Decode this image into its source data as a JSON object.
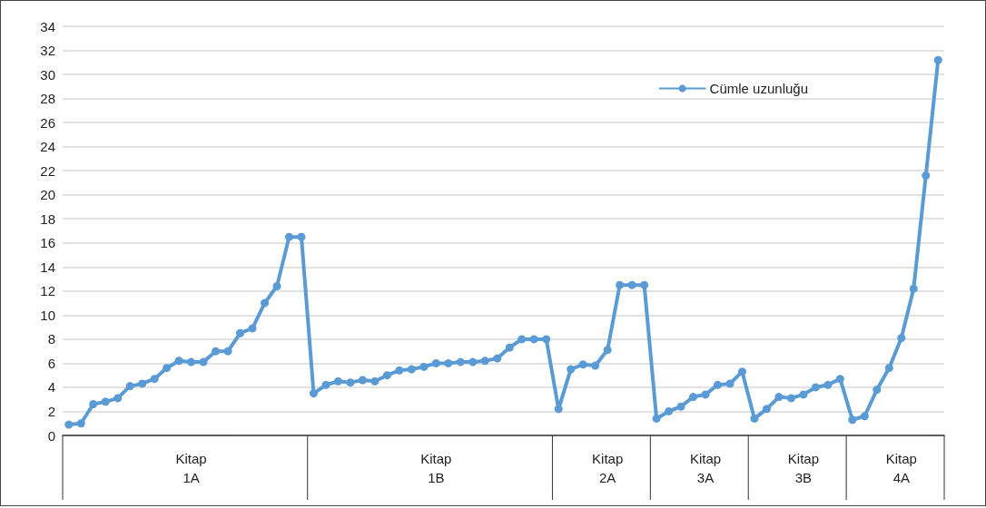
{
  "chart_data": {
    "type": "line",
    "categories": [
      null,
      null,
      null,
      null,
      null,
      null,
      null,
      null,
      null,
      null,
      "Kitap 1A",
      null,
      null,
      null,
      null,
      null,
      null,
      null,
      null,
      null,
      null,
      null,
      null,
      null,
      null,
      null,
      null,
      null,
      null,
      null,
      "Kitap 1B",
      null,
      null,
      null,
      null,
      null,
      null,
      null,
      null,
      null,
      null,
      null,
      null,
      null,
      "Kitap 2A",
      null,
      null,
      null,
      null,
      null,
      null,
      null,
      "Kitap 3A",
      null,
      null,
      null,
      null,
      null,
      null,
      null,
      "Kitap 3B",
      null,
      null,
      null,
      null,
      null,
      null,
      null,
      "Kitap 4A",
      null,
      null,
      null
    ],
    "series": [
      {
        "name": "Cümle uzunluğu",
        "color": "#5b9bd5",
        "values": [
          0.9,
          1.0,
          2.6,
          2.8,
          3.1,
          4.1,
          4.3,
          4.7,
          5.6,
          6.2,
          6.1,
          6.1,
          7.0,
          7.0,
          8.5,
          8.9,
          11.0,
          12.4,
          16.5,
          16.5,
          3.5,
          4.2,
          4.5,
          4.4,
          4.6,
          4.5,
          5.0,
          5.4,
          5.5,
          5.7,
          6.0,
          6.0,
          6.1,
          6.1,
          6.2,
          6.4,
          7.3,
          8.0,
          8.0,
          8.0,
          2.2,
          5.5,
          5.9,
          5.8,
          7.1,
          12.5,
          12.5,
          12.5,
          1.4,
          2.0,
          2.4,
          3.2,
          3.4,
          4.2,
          4.3,
          5.3,
          1.4,
          2.2,
          3.2,
          3.1,
          3.4,
          4.0,
          4.2,
          4.7,
          1.3,
          1.6,
          3.8,
          5.6,
          8.1,
          12.2,
          21.6,
          31.2
        ]
      }
    ],
    "ylim": [
      0,
      34
    ],
    "yticks": [
      0,
      2,
      4,
      6,
      8,
      10,
      12,
      14,
      16,
      18,
      20,
      22,
      24,
      26,
      28,
      30,
      32,
      34
    ],
    "grid": "y",
    "legend": "top right",
    "marker": "circle",
    "line_style": "solid"
  }
}
